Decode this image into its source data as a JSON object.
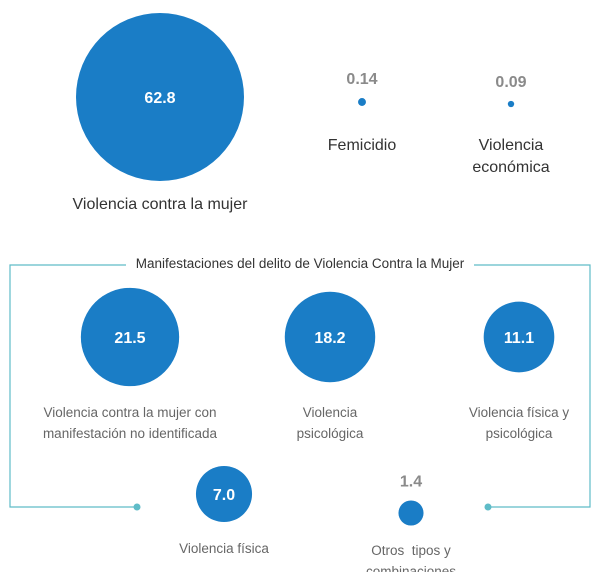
{
  "chart_data": [
    {
      "type": "bubble",
      "color": "#1a7dc6",
      "categories": [
        "Violencia contra la mujer",
        "Femicidio",
        "Violencia económica"
      ],
      "values": [
        62.8,
        0.14,
        0.09
      ]
    },
    {
      "type": "bubble",
      "color": "#1a7dc6",
      "frame_color": "#5fbcc8",
      "title": "Manifestaciones del delito de Violencia Contra la Mujer",
      "categories": [
        "Violencia contra la mujer con manifestación no identificada",
        "Violencia psicológica",
        "Violencia física y psicológica",
        "Violencia física",
        "Otros  tipos y combinaciones"
      ],
      "values": [
        21.5,
        18.2,
        11.1,
        7.0,
        1.4
      ],
      "value_labels": [
        "21.5",
        "18.2",
        "11.1",
        "7.0",
        "1.4"
      ]
    }
  ]
}
